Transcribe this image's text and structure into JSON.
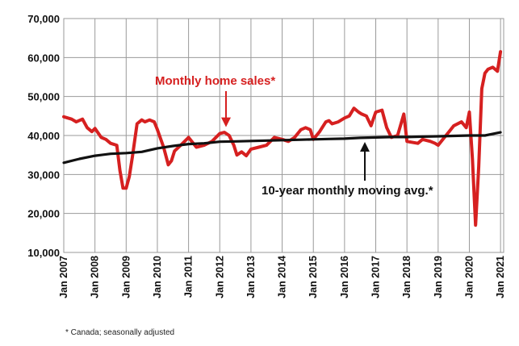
{
  "chart_data": {
    "type": "line",
    "title": "",
    "xlabel": "",
    "ylabel": "",
    "ylim": [
      10000,
      70000
    ],
    "yticks": [
      "10,000",
      "20,000",
      "30,000",
      "40,000",
      "50,000",
      "60,000",
      "70,000"
    ],
    "ytick_values": [
      10000,
      20000,
      30000,
      40000,
      50000,
      60000,
      70000
    ],
    "xticks": [
      "Jan 2007",
      "Jan 2008",
      "Jan 2009",
      "Jan 2010",
      "Jan 2011",
      "Jan 2012",
      "Jan 2013",
      "Jan 2014",
      "Jan 2015",
      "Jan 2016",
      "Jan 2017",
      "Jan 2018",
      "Jan 2019",
      "Jan 2020",
      "Jan 2021"
    ],
    "xtick_values": [
      2007,
      2008,
      2009,
      2010,
      2011,
      2012,
      2013,
      2014,
      2015,
      2016,
      2017,
      2018,
      2019,
      2020,
      2021
    ],
    "xlim": [
      2007,
      2021.1
    ],
    "grid": true,
    "series": [
      {
        "name": "Monthly home sales*",
        "color": "#d62020",
        "x": [
          2007.0,
          2007.25,
          2007.4,
          2007.6,
          2007.75,
          2007.9,
          2008.0,
          2008.2,
          2008.35,
          2008.5,
          2008.7,
          2008.8,
          2008.9,
          2009.0,
          2009.1,
          2009.2,
          2009.35,
          2009.5,
          2009.6,
          2009.75,
          2009.9,
          2010.0,
          2010.2,
          2010.35,
          2010.45,
          2010.55,
          2010.75,
          2011.0,
          2011.1,
          2011.25,
          2011.5,
          2011.75,
          2012.0,
          2012.15,
          2012.3,
          2012.45,
          2012.55,
          2012.7,
          2012.85,
          2013.0,
          2013.25,
          2013.5,
          2013.75,
          2014.0,
          2014.2,
          2014.4,
          2014.6,
          2014.75,
          2014.9,
          2015.0,
          2015.2,
          2015.4,
          2015.5,
          2015.6,
          2015.8,
          2016.0,
          2016.15,
          2016.3,
          2016.45,
          2016.55,
          2016.7,
          2016.85,
          2017.0,
          2017.2,
          2017.35,
          2017.5,
          2017.7,
          2017.9,
          2018.0,
          2018.2,
          2018.35,
          2018.5,
          2018.75,
          2018.9,
          2019.0,
          2019.2,
          2019.35,
          2019.5,
          2019.75,
          2019.9,
          2020.0,
          2020.1,
          2020.2,
          2020.3,
          2020.4,
          2020.5,
          2020.6,
          2020.75,
          2020.9,
          2021.0
        ],
        "values": [
          44800,
          44200,
          43500,
          44200,
          42000,
          41000,
          41800,
          39500,
          39000,
          38000,
          37500,
          31000,
          26500,
          26500,
          29500,
          34500,
          43000,
          44000,
          43500,
          44000,
          43500,
          41500,
          37000,
          32500,
          33500,
          36000,
          37500,
          39500,
          38500,
          37000,
          37500,
          38500,
          40500,
          40800,
          40000,
          37500,
          35000,
          35800,
          34800,
          36500,
          37000,
          37500,
          39500,
          39000,
          38500,
          39500,
          41500,
          42000,
          41500,
          39000,
          41000,
          43500,
          43800,
          43000,
          43500,
          44500,
          45000,
          47000,
          46000,
          45500,
          45000,
          42500,
          46000,
          46500,
          42000,
          39500,
          40000,
          45500,
          38500,
          38200,
          38000,
          39000,
          38500,
          38000,
          37500,
          39500,
          41000,
          42500,
          43500,
          42000,
          46000,
          34000,
          17000,
          32000,
          52000,
          56000,
          57000,
          57500,
          56500,
          61500
        ]
      },
      {
        "name": "10-year monthly moving avg.*",
        "color": "#111111",
        "x": [
          2007.0,
          2007.5,
          2008.0,
          2008.5,
          2009.0,
          2009.5,
          2010.0,
          2010.5,
          2011.0,
          2011.5,
          2012.0,
          2012.5,
          2013.0,
          2013.5,
          2014.0,
          2014.5,
          2015.0,
          2015.5,
          2016.0,
          2016.5,
          2017.0,
          2017.5,
          2018.0,
          2018.5,
          2019.0,
          2019.5,
          2020.0,
          2020.5,
          2021.0
        ],
        "values": [
          33000,
          34000,
          34800,
          35300,
          35500,
          35800,
          36700,
          37300,
          37800,
          38000,
          38400,
          38500,
          38600,
          38700,
          38800,
          38900,
          39000,
          39100,
          39200,
          39400,
          39500,
          39600,
          39600,
          39700,
          39800,
          39900,
          40000,
          40000,
          40800
        ]
      }
    ],
    "annotations": [
      {
        "text": "Monthly home sales*",
        "arrow_to_x": 2012.2,
        "arrow_to_y": 41000
      },
      {
        "text": "10-year monthly moving avg.*",
        "arrow_to_x": 2016.65,
        "arrow_to_y": 39500
      }
    ],
    "footnote": "* Canada; seasonally adjusted"
  }
}
